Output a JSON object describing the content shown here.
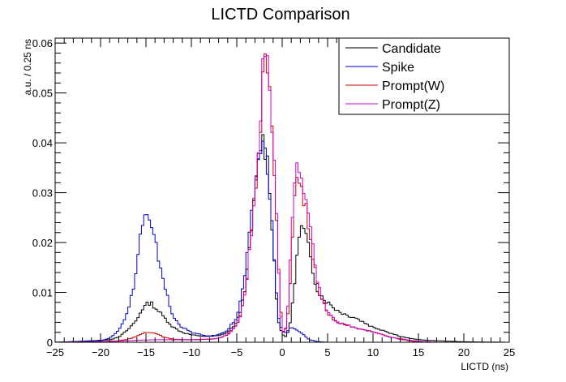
{
  "chart_data": {
    "type": "line",
    "style": "step-histogram",
    "title": "LICTD Comparison",
    "xlabel": "LICTD (ns)",
    "ylabel": "a.u. / 0.25 ns",
    "xlim": [
      -25,
      25
    ],
    "ylim": [
      0,
      0.061
    ],
    "xticks": [
      -25,
      -20,
      -15,
      -10,
      -5,
      0,
      5,
      10,
      15,
      20,
      25
    ],
    "yticks": [
      0,
      0.01,
      0.02,
      0.03,
      0.04,
      0.05,
      0.06
    ],
    "xtick_labels": [
      "−25",
      "−20",
      "−15",
      "−10",
      "−5",
      "0",
      "5",
      "10",
      "15",
      "20",
      "25"
    ],
    "ytick_labels": [
      "0",
      "0.01",
      "0.02",
      "0.03",
      "0.04",
      "0.05",
      "0.06"
    ],
    "grid": false,
    "legend_position": "top-right",
    "series": [
      {
        "name": "Candidate",
        "color": "#000000",
        "points": [
          [
            -25,
            0
          ],
          [
            -22,
            0.0002
          ],
          [
            -19,
            0.0005
          ],
          [
            -18,
            0.001
          ],
          [
            -17,
            0.0025
          ],
          [
            -16,
            0.0045
          ],
          [
            -15.5,
            0.0065
          ],
          [
            -15,
            0.0075
          ],
          [
            -14.5,
            0.008
          ],
          [
            -14,
            0.007
          ],
          [
            -13,
            0.005
          ],
          [
            -12,
            0.003
          ],
          [
            -11,
            0.002
          ],
          [
            -10,
            0.0015
          ],
          [
            -9,
            0.0012
          ],
          [
            -8,
            0.0012
          ],
          [
            -7,
            0.0013
          ],
          [
            -6,
            0.002
          ],
          [
            -5,
            0.004
          ],
          [
            -4.5,
            0.007
          ],
          [
            -4,
            0.012
          ],
          [
            -3.5,
            0.02
          ],
          [
            -3,
            0.03
          ],
          [
            -2.5,
            0.038
          ],
          [
            -2.25,
            0.041
          ],
          [
            -2,
            0.04
          ],
          [
            -1.5,
            0.035
          ],
          [
            -1,
            0.02
          ],
          [
            -0.5,
            0.005
          ],
          [
            0,
            0.0015
          ],
          [
            0.5,
            0.001
          ],
          [
            1,
            0.005
          ],
          [
            1.5,
            0.015
          ],
          [
            2,
            0.023
          ],
          [
            2.5,
            0.022
          ],
          [
            3,
            0.018
          ],
          [
            3.5,
            0.013
          ],
          [
            4,
            0.01
          ],
          [
            5,
            0.008
          ],
          [
            6,
            0.0065
          ],
          [
            7,
            0.0055
          ],
          [
            8,
            0.005
          ],
          [
            9,
            0.004
          ],
          [
            10,
            0.003
          ],
          [
            11,
            0.0025
          ],
          [
            12,
            0.0018
          ],
          [
            13,
            0.0012
          ],
          [
            14,
            0.0008
          ],
          [
            15,
            0.0005
          ],
          [
            17,
            0.0003
          ],
          [
            20,
            0.0001
          ],
          [
            25,
            0
          ]
        ]
      },
      {
        "name": "Spike",
        "color": "#0000cc",
        "points": [
          [
            -25,
            0
          ],
          [
            -20,
            0.0003
          ],
          [
            -19,
            0.0008
          ],
          [
            -18,
            0.0025
          ],
          [
            -17,
            0.006
          ],
          [
            -16.5,
            0.01
          ],
          [
            -16,
            0.015
          ],
          [
            -15.75,
            0.02
          ],
          [
            -15.5,
            0.023
          ],
          [
            -15,
            0.0255
          ],
          [
            -14.75,
            0.0245
          ],
          [
            -14.5,
            0.023
          ],
          [
            -14,
            0.02
          ],
          [
            -13.5,
            0.016
          ],
          [
            -13,
            0.012
          ],
          [
            -12.5,
            0.008
          ],
          [
            -12,
            0.005
          ],
          [
            -11,
            0.003
          ],
          [
            -10,
            0.002
          ],
          [
            -9,
            0.0015
          ],
          [
            -8,
            0.0012
          ],
          [
            -7,
            0.0015
          ],
          [
            -6,
            0.0025
          ],
          [
            -5,
            0.005
          ],
          [
            -4.5,
            0.009
          ],
          [
            -4,
            0.015
          ],
          [
            -3.5,
            0.023
          ],
          [
            -3,
            0.031
          ],
          [
            -2.5,
            0.038
          ],
          [
            -2.25,
            0.04
          ],
          [
            -2,
            0.039
          ],
          [
            -1.5,
            0.034
          ],
          [
            -1,
            0.02
          ],
          [
            -0.5,
            0.006
          ],
          [
            0,
            0.002
          ],
          [
            0.5,
            0.002
          ],
          [
            1,
            0.003
          ],
          [
            2,
            0.002
          ],
          [
            3,
            0.0005
          ],
          [
            4,
            0.0001
          ],
          [
            5,
            0
          ],
          [
            25,
            0
          ]
        ]
      },
      {
        "name": "Prompt(W)",
        "color": "#cc0000",
        "points": [
          [
            -25,
            0
          ],
          [
            -20,
            0.0001
          ],
          [
            -18,
            0.0003
          ],
          [
            -17,
            0.0006
          ],
          [
            -16,
            0.0012
          ],
          [
            -15,
            0.002
          ],
          [
            -14,
            0.0018
          ],
          [
            -13,
            0.001
          ],
          [
            -12,
            0.0006
          ],
          [
            -10,
            0.0005
          ],
          [
            -8,
            0.0006
          ],
          [
            -7,
            0.0008
          ],
          [
            -6,
            0.0015
          ],
          [
            -5,
            0.0035
          ],
          [
            -4.5,
            0.006
          ],
          [
            -4,
            0.011
          ],
          [
            -3.5,
            0.02
          ],
          [
            -3,
            0.03
          ],
          [
            -2.5,
            0.04
          ],
          [
            -2.25,
            0.047
          ],
          [
            -2,
            0.06
          ],
          [
            -1.75,
            0.056
          ],
          [
            -1.5,
            0.052
          ],
          [
            -1,
            0.04
          ],
          [
            -0.5,
            0.02
          ],
          [
            -0.25,
            0.01
          ],
          [
            0,
            0.002
          ],
          [
            0.5,
            0.003
          ],
          [
            1,
            0.015
          ],
          [
            1.25,
            0.028
          ],
          [
            1.5,
            0.032
          ],
          [
            2,
            0.032
          ],
          [
            2.5,
            0.028
          ],
          [
            3,
            0.022
          ],
          [
            3.5,
            0.016
          ],
          [
            4,
            0.01
          ],
          [
            5,
            0.006
          ],
          [
            6,
            0.004
          ],
          [
            7,
            0.0035
          ],
          [
            8,
            0.003
          ],
          [
            9,
            0.0025
          ],
          [
            10,
            0.002
          ],
          [
            11,
            0.0015
          ],
          [
            12,
            0.001
          ],
          [
            13,
            0.0006
          ],
          [
            14,
            0.0003
          ],
          [
            15,
            0.0001
          ],
          [
            16,
            0
          ],
          [
            25,
            0
          ]
        ]
      },
      {
        "name": "Prompt(Z)",
        "color": "#cc00cc",
        "points": [
          [
            -25,
            0
          ],
          [
            -20,
            0.0001
          ],
          [
            -18,
            0.0002
          ],
          [
            -16,
            0.0004
          ],
          [
            -14,
            0.0005
          ],
          [
            -12,
            0.0005
          ],
          [
            -10,
            0.0005
          ],
          [
            -8,
            0.0006
          ],
          [
            -7,
            0.0008
          ],
          [
            -6,
            0.0015
          ],
          [
            -5,
            0.0035
          ],
          [
            -4.5,
            0.006
          ],
          [
            -4,
            0.011
          ],
          [
            -3.5,
            0.02
          ],
          [
            -3,
            0.03
          ],
          [
            -2.5,
            0.04
          ],
          [
            -2.25,
            0.052
          ],
          [
            -2,
            0.061
          ],
          [
            -1.75,
            0.058
          ],
          [
            -1.5,
            0.052
          ],
          [
            -1,
            0.04
          ],
          [
            -0.5,
            0.02
          ],
          [
            -0.25,
            0.008
          ],
          [
            0,
            0.002
          ],
          [
            0.5,
            0.003
          ],
          [
            1,
            0.02
          ],
          [
            1.25,
            0.033
          ],
          [
            1.5,
            0.035
          ],
          [
            2,
            0.034
          ],
          [
            2.5,
            0.03
          ],
          [
            3,
            0.025
          ],
          [
            3.5,
            0.018
          ],
          [
            4,
            0.011
          ],
          [
            5,
            0.006
          ],
          [
            6,
            0.004
          ],
          [
            7,
            0.0035
          ],
          [
            8,
            0.003
          ],
          [
            9,
            0.0025
          ],
          [
            10,
            0.002
          ],
          [
            11,
            0.0015
          ],
          [
            12,
            0.001
          ],
          [
            13,
            0.0007
          ],
          [
            14,
            0.0004
          ],
          [
            15,
            0.0002
          ],
          [
            16,
            0.0001
          ],
          [
            17,
            0
          ],
          [
            25,
            0
          ]
        ]
      }
    ]
  }
}
